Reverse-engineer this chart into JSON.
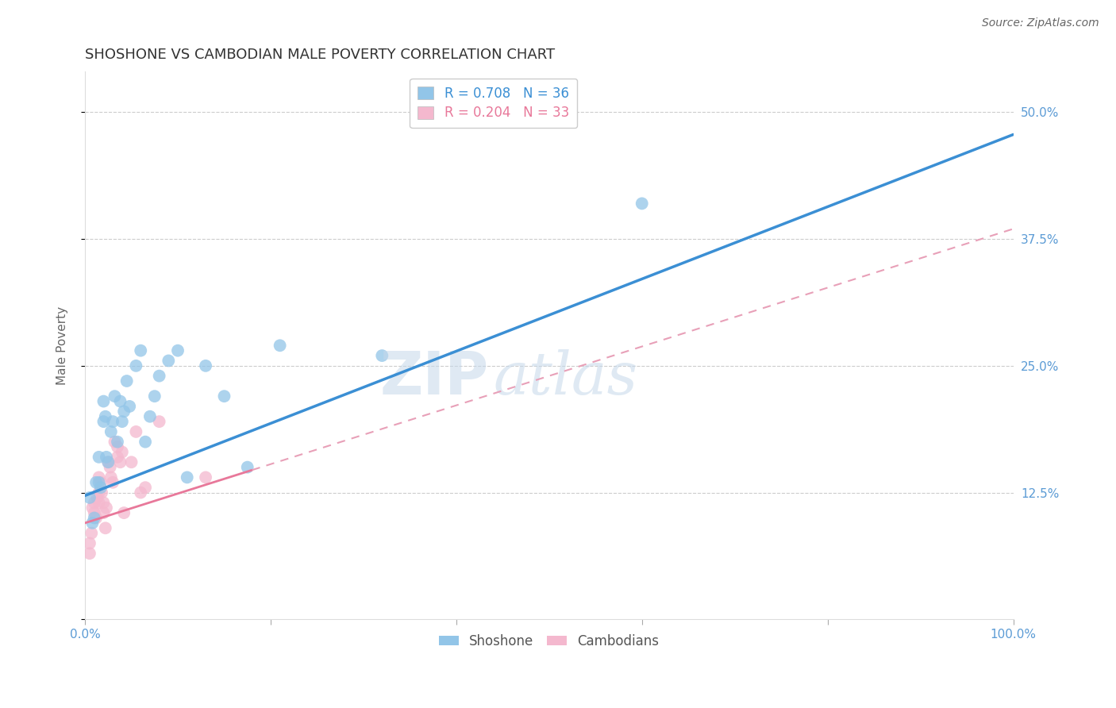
{
  "title": "SHOSHONE VS CAMBODIAN MALE POVERTY CORRELATION CHART",
  "source": "Source: ZipAtlas.com",
  "ylabel": "Male Poverty",
  "yticks": [
    0.0,
    0.125,
    0.25,
    0.375,
    0.5
  ],
  "ytick_labels": [
    "",
    "12.5%",
    "25.0%",
    "37.5%",
    "50.0%"
  ],
  "xlim": [
    0.0,
    1.0
  ],
  "ylim": [
    0.0,
    0.54
  ],
  "shoshone_R": 0.708,
  "shoshone_N": 36,
  "cambodian_R": 0.204,
  "cambodian_N": 33,
  "shoshone_color": "#92c5e8",
  "cambodian_color": "#f4b8ce",
  "shoshone_line_color": "#3b8fd4",
  "cambodian_line_color": "#e8789a",
  "cambodian_dash_color": "#e8a0b8",
  "watermark_zip": "ZIP",
  "watermark_atlas": "atlas",
  "background_color": "#ffffff",
  "grid_color": "#cccccc",
  "axis_label_color": "#5b9bd5",
  "legend_box_color": "#cccccc",
  "shoshone_line_intercept": 0.122,
  "shoshone_line_slope": 0.356,
  "cambodian_line_intercept": 0.095,
  "cambodian_line_slope": 0.29,
  "shoshone_x": [
    0.005,
    0.008,
    0.01,
    0.012,
    0.015,
    0.015,
    0.017,
    0.02,
    0.02,
    0.022,
    0.023,
    0.025,
    0.028,
    0.03,
    0.032,
    0.035,
    0.038,
    0.04,
    0.042,
    0.045,
    0.048,
    0.055,
    0.06,
    0.065,
    0.07,
    0.075,
    0.08,
    0.09,
    0.1,
    0.11,
    0.13,
    0.15,
    0.175,
    0.21,
    0.32,
    0.6
  ],
  "shoshone_y": [
    0.12,
    0.095,
    0.1,
    0.135,
    0.135,
    0.16,
    0.13,
    0.195,
    0.215,
    0.2,
    0.16,
    0.155,
    0.185,
    0.195,
    0.22,
    0.175,
    0.215,
    0.195,
    0.205,
    0.235,
    0.21,
    0.25,
    0.265,
    0.175,
    0.2,
    0.22,
    0.24,
    0.255,
    0.265,
    0.14,
    0.25,
    0.22,
    0.15,
    0.27,
    0.26,
    0.41
  ],
  "cambodian_x": [
    0.005,
    0.005,
    0.007,
    0.008,
    0.01,
    0.01,
    0.012,
    0.013,
    0.015,
    0.015,
    0.015,
    0.017,
    0.018,
    0.02,
    0.02,
    0.022,
    0.023,
    0.025,
    0.027,
    0.028,
    0.03,
    0.032,
    0.035,
    0.035,
    0.038,
    0.04,
    0.042,
    0.05,
    0.055,
    0.06,
    0.065,
    0.08,
    0.13
  ],
  "cambodian_y": [
    0.065,
    0.075,
    0.085,
    0.11,
    0.105,
    0.115,
    0.1,
    0.12,
    0.115,
    0.125,
    0.14,
    0.135,
    0.125,
    0.105,
    0.115,
    0.09,
    0.11,
    0.155,
    0.15,
    0.14,
    0.135,
    0.175,
    0.16,
    0.17,
    0.155,
    0.165,
    0.105,
    0.155,
    0.185,
    0.125,
    0.13,
    0.195,
    0.14
  ]
}
